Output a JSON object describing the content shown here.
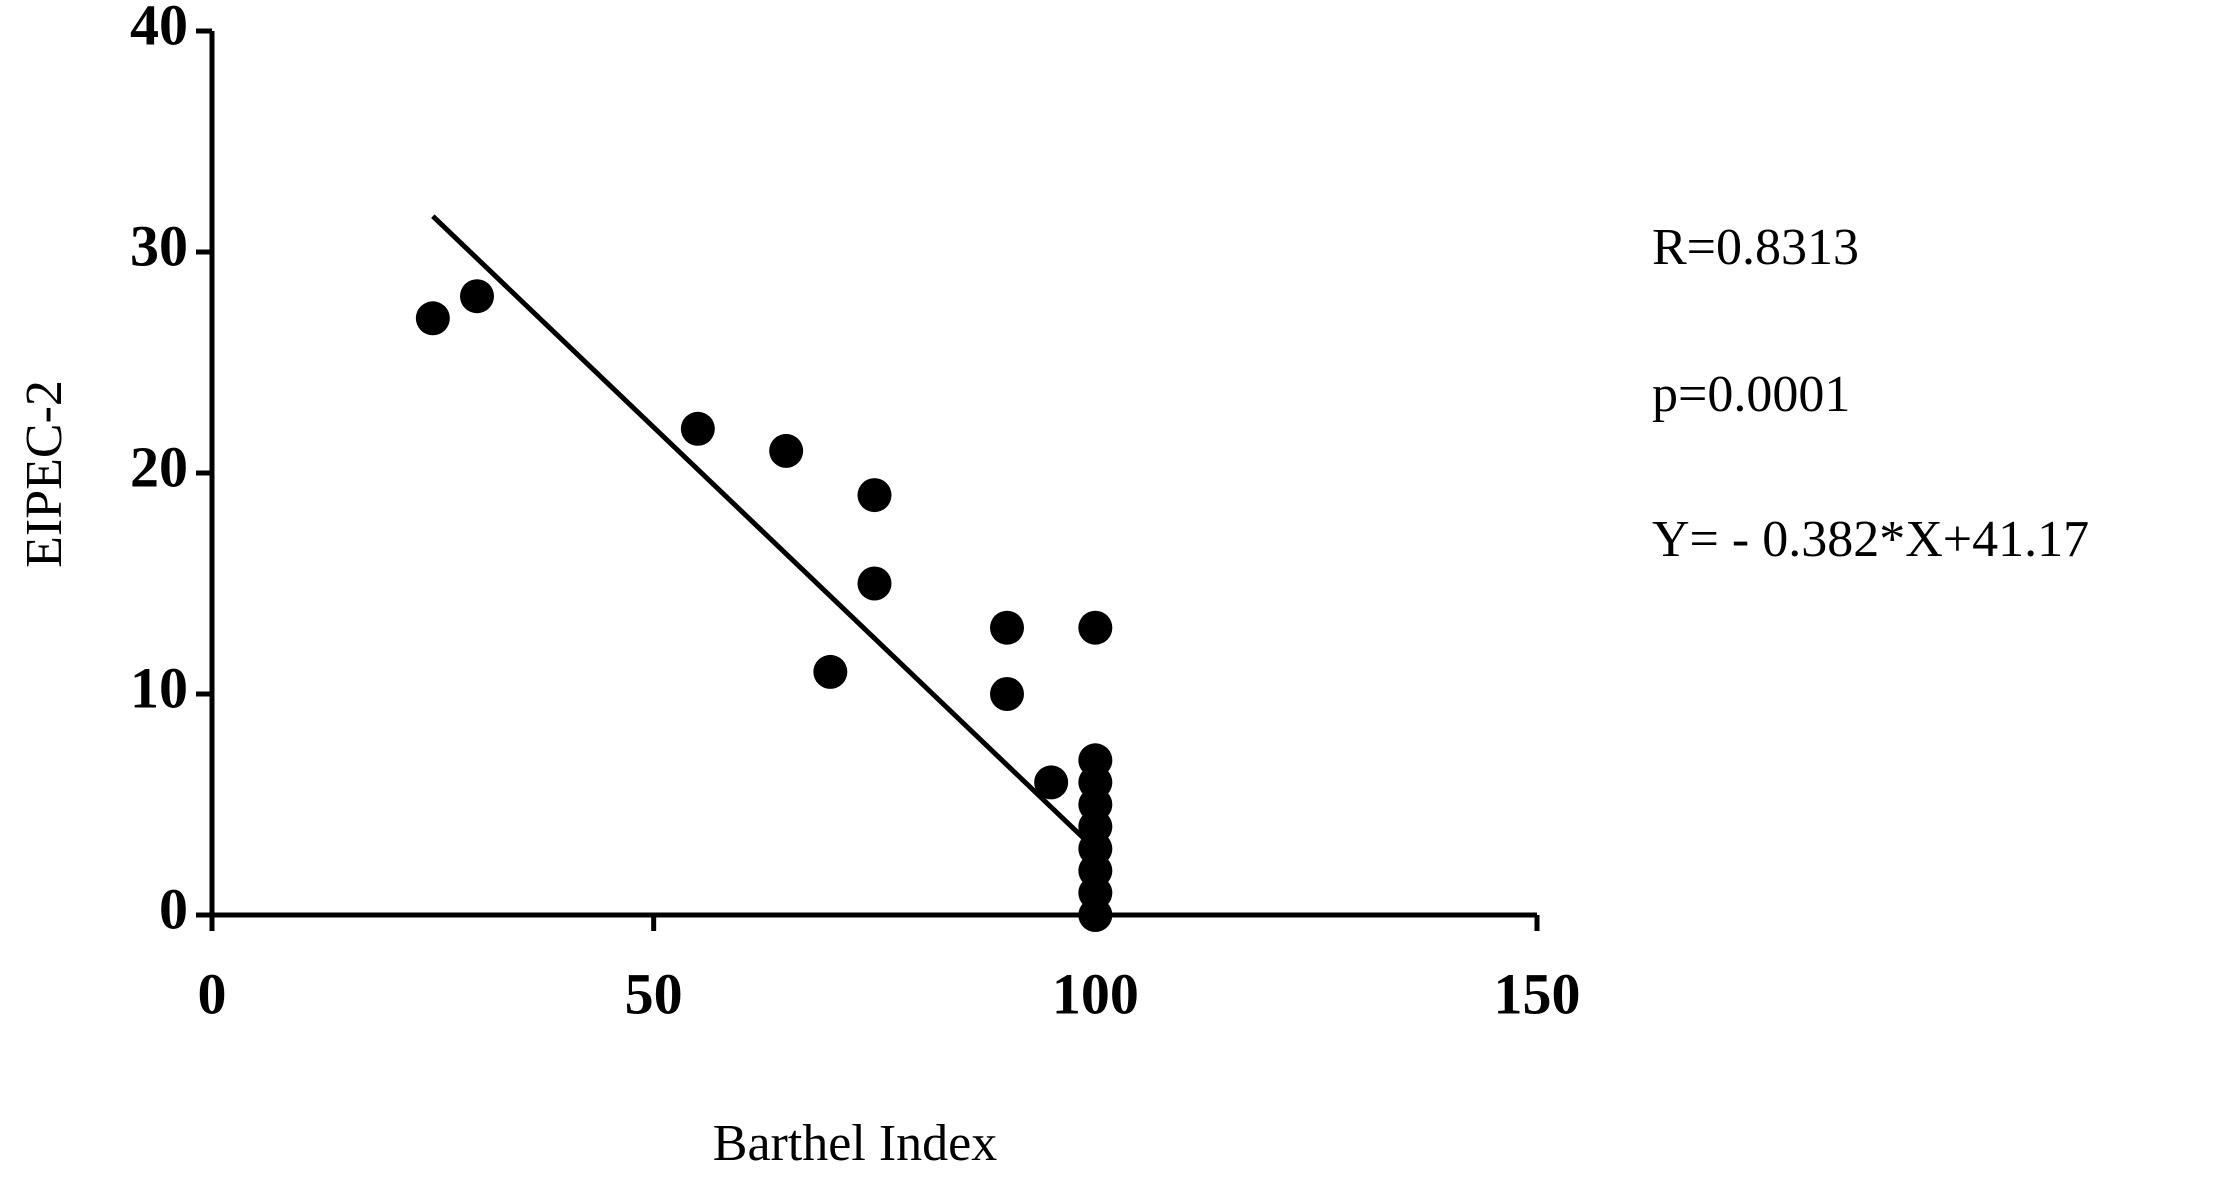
{
  "chart_data": {
    "type": "scatter",
    "x_label": "Barthel Index",
    "y_label": "EIPEC-2",
    "annotations": [
      "R=0.8313",
      "p=0.0001",
      "Y= - 0.382*X+41.17"
    ],
    "x": [
      25,
      30,
      55,
      65,
      75,
      75,
      70,
      90,
      90,
      95,
      100,
      100,
      100,
      100,
      100,
      100,
      100,
      100,
      100
    ],
    "y": [
      27,
      28,
      22,
      21,
      19,
      15,
      11,
      13,
      10,
      6,
      13,
      7,
      6,
      5,
      4,
      3,
      2,
      1,
      0
    ],
    "color": "#000000",
    "fit_line": {
      "x": [
        25,
        99
      ],
      "y": [
        31.62,
        3.35
      ]
    },
    "xlim": [
      0,
      150
    ],
    "xticks": [
      0,
      50,
      100,
      150
    ],
    "ylim": [
      0,
      40
    ],
    "yticks": [
      0,
      10,
      20,
      30,
      40
    ]
  }
}
